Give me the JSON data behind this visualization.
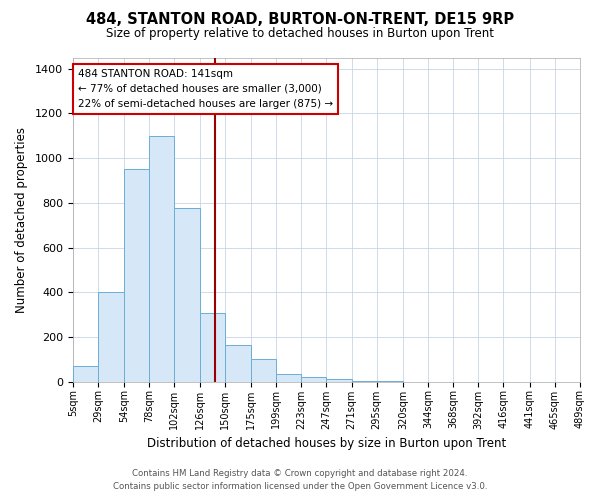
{
  "title": "484, STANTON ROAD, BURTON-ON-TRENT, DE15 9RP",
  "subtitle": "Size of property relative to detached houses in Burton upon Trent",
  "xlabel": "Distribution of detached houses by size in Burton upon Trent",
  "ylabel": "Number of detached properties",
  "bin_edges": [
    5,
    29,
    54,
    78,
    102,
    126,
    150,
    175,
    199,
    223,
    247,
    271,
    295,
    320,
    344,
    368,
    392,
    416,
    441,
    465,
    489
  ],
  "bin_labels": [
    "5sqm",
    "29sqm",
    "54sqm",
    "78sqm",
    "102sqm",
    "126sqm",
    "150sqm",
    "175sqm",
    "199sqm",
    "223sqm",
    "247sqm",
    "271sqm",
    "295sqm",
    "320sqm",
    "344sqm",
    "368sqm",
    "392sqm",
    "416sqm",
    "441sqm",
    "465sqm",
    "489sqm"
  ],
  "counts": [
    70,
    400,
    950,
    1100,
    775,
    305,
    165,
    100,
    35,
    20,
    10,
    5,
    3,
    0,
    0,
    0,
    0,
    0,
    0,
    0
  ],
  "bar_color": "#d6e8f7",
  "bar_edge_color": "#6aaed6",
  "vline_x": 141,
  "vline_color": "#990000",
  "ylim": [
    0,
    1450
  ],
  "yticks": [
    0,
    200,
    400,
    600,
    800,
    1000,
    1200,
    1400
  ],
  "annotation_line1": "484 STANTON ROAD: 141sqm",
  "annotation_line2": "← 77% of detached houses are smaller (3,000)",
  "annotation_line3": "22% of semi-detached houses are larger (875) →",
  "annotation_box_edge": "#cc0000",
  "footer_line1": "Contains HM Land Registry data © Crown copyright and database right 2024.",
  "footer_line2": "Contains public sector information licensed under the Open Government Licence v3.0.",
  "bg_color": "#ffffff",
  "plot_bg_color": "#ffffff",
  "grid_color": "#c8d4e8"
}
